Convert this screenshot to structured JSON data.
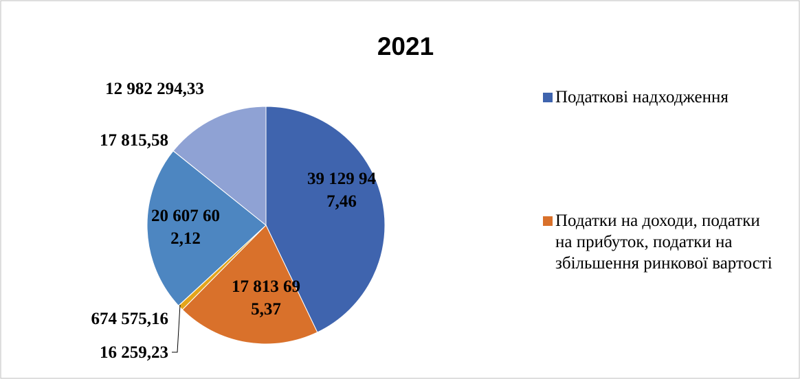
{
  "chart_data": {
    "type": "pie",
    "title": "2021",
    "categories": [
      "Податкові надходження",
      "Податки на доходи, податки на прибуток, податки на збільшення ринкової вартості",
      null,
      null,
      null,
      null,
      null
    ],
    "values": [
      39129947.46,
      17813695.37,
      674575.16,
      16259.23,
      20607602.12,
      17815.58,
      12982294.33
    ],
    "value_labels": [
      "39 129 947,46",
      "17 813 695,37",
      "674 575,16",
      "16 259,23",
      "20 607 602,12",
      "17 815,58",
      "12 982 294,33"
    ],
    "colors": [
      "#3f64ae",
      "#d9712b",
      "#e3a51c",
      "#9a9a9a",
      "#4d86c1",
      "#6f8fc6",
      "#8fa2d4"
    ],
    "legend": "right"
  }
}
